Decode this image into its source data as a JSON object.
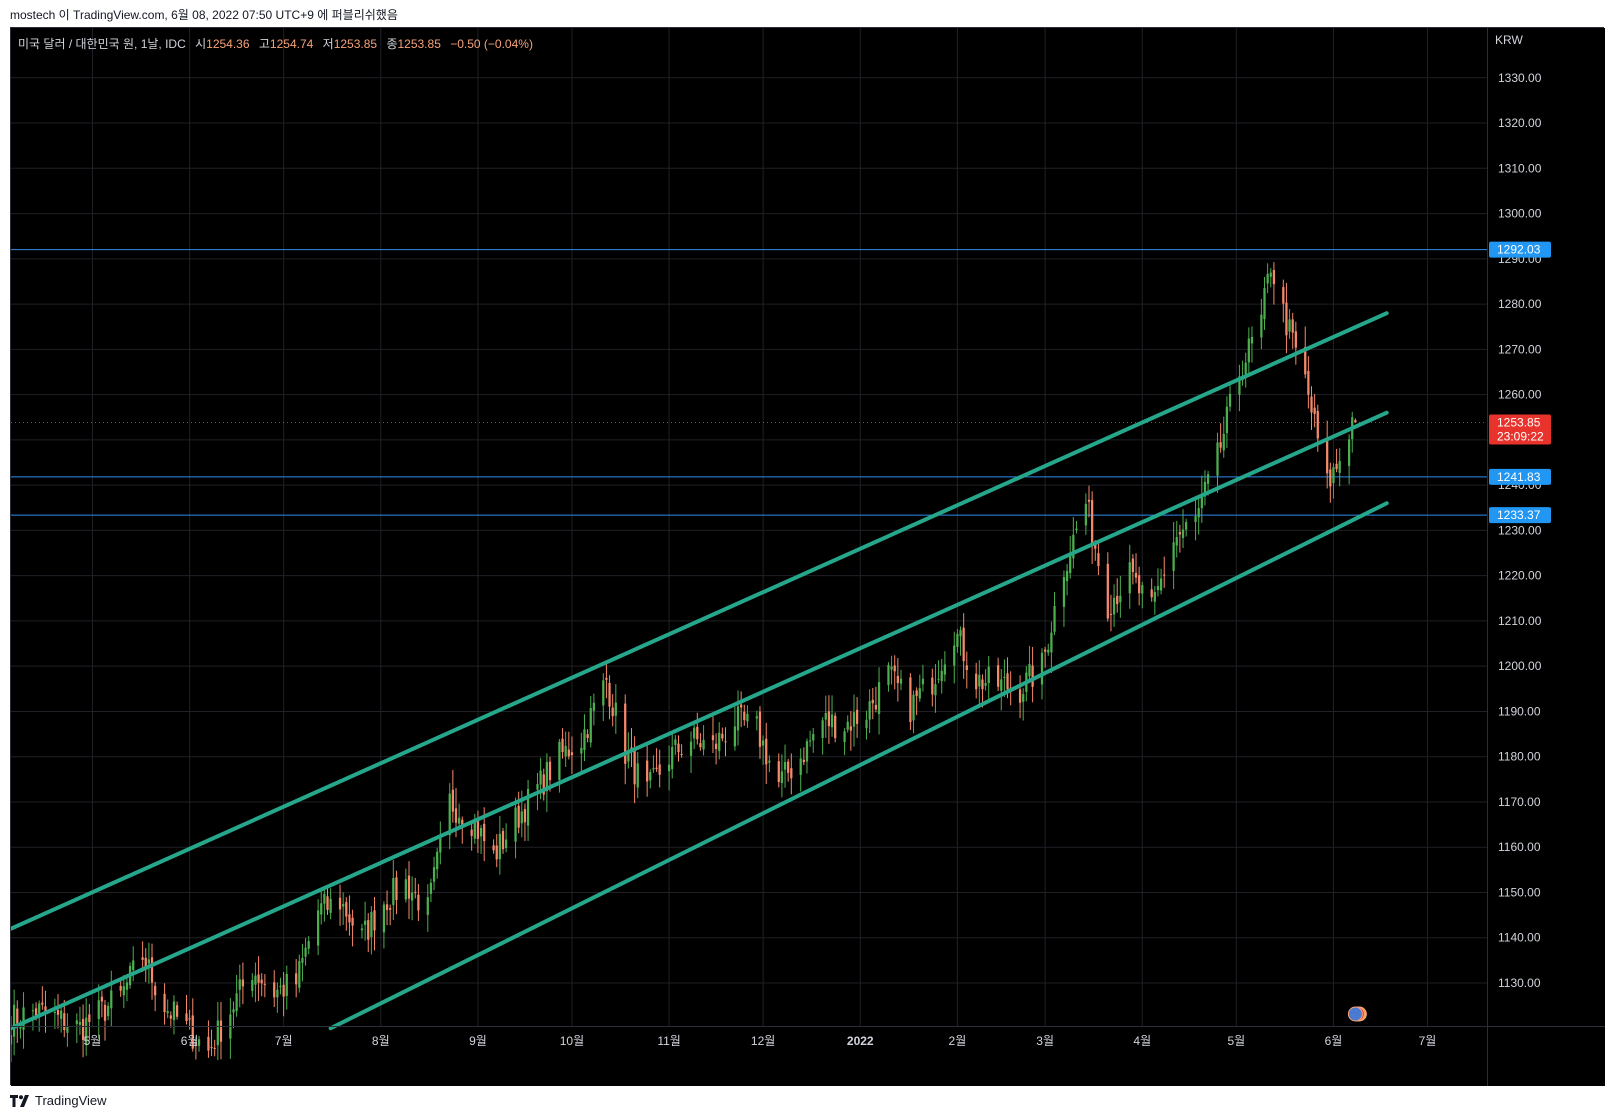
{
  "header": {
    "text": "mostech 이 TradingView.com, 6월 08, 2022 07:50 UTC+9 에 퍼블리쉬했음"
  },
  "legend": {
    "symbol": "미국 달러 / 대한민국 원, 1날, IDC",
    "open_label": "시",
    "open_value": "1254.36",
    "high_label": "고",
    "high_value": "1254.74",
    "low_label": "저",
    "low_value": "1253.85",
    "close_label": "종",
    "close_value": "1253.85",
    "change": "−0.50 (−0.04%)"
  },
  "footer": {
    "brand": "TradingView"
  },
  "colors": {
    "background": "#000000",
    "grid": "#1f2126",
    "up_candle": "#4caf50",
    "down_candle": "#f7896b",
    "channel": "#26a68a",
    "horizontal_line": "#2e8cf0",
    "price_label_blue": "#2196f3",
    "price_label_red": "#e8332c",
    "text": "#d1d4dc"
  },
  "chart_data": {
    "type": "candlestick",
    "symbol": "USD/KRW",
    "timeframe": "1D",
    "y_unit": "KRW",
    "yticks": [
      1130,
      1140,
      1150,
      1160,
      1170,
      1180,
      1190,
      1200,
      1210,
      1220,
      1230,
      1240,
      1250,
      1260,
      1270,
      1280,
      1290,
      1300,
      1310,
      1320,
      1330
    ],
    "ytick_labels": [
      "1130.00",
      "1140.00",
      "1150.00",
      "1160.00",
      "1170.00",
      "1180.00",
      "1190.00",
      "1200.00",
      "1210.00",
      "1220.00",
      "1230.00",
      "1240.00",
      "1250.00",
      "1260.00",
      "1270.00",
      "1280.00",
      "1290.00",
      "1300.00",
      "1310.00",
      "1320.00",
      "1330.00"
    ],
    "ylim": [
      1120.5,
      1341
    ],
    "xlim": [
      "2021-04-05",
      "2022-07-20"
    ],
    "xticks": [
      {
        "date": "2021-05-01",
        "label": "5월",
        "bold": false
      },
      {
        "date": "2021-06-01",
        "label": "6월",
        "bold": false
      },
      {
        "date": "2021-07-01",
        "label": "7월",
        "bold": false
      },
      {
        "date": "2021-08-01",
        "label": "8월",
        "bold": false
      },
      {
        "date": "2021-09-01",
        "label": "9월",
        "bold": false
      },
      {
        "date": "2021-10-01",
        "label": "10월",
        "bold": false
      },
      {
        "date": "2021-11-01",
        "label": "11월",
        "bold": false
      },
      {
        "date": "2021-12-01",
        "label": "12월",
        "bold": false
      },
      {
        "date": "2022-01-01",
        "label": "2022",
        "bold": true
      },
      {
        "date": "2022-02-01",
        "label": "2월",
        "bold": false
      },
      {
        "date": "2022-03-01",
        "label": "3월",
        "bold": false
      },
      {
        "date": "2022-04-01",
        "label": "4월",
        "bold": false
      },
      {
        "date": "2022-05-01",
        "label": "5월",
        "bold": false
      },
      {
        "date": "2022-06-01",
        "label": "6월",
        "bold": false
      },
      {
        "date": "2022-07-01",
        "label": "7월",
        "bold": false
      }
    ],
    "anchors": [
      [
        "2021-04-05",
        1122
      ],
      [
        "2021-04-13",
        1124
      ],
      [
        "2021-04-27",
        1120
      ],
      [
        "2021-05-10",
        1127
      ],
      [
        "2021-05-17",
        1136
      ],
      [
        "2021-05-24",
        1125
      ],
      [
        "2021-06-07",
        1115
      ],
      [
        "2021-06-21",
        1133
      ],
      [
        "2021-06-28",
        1128
      ],
      [
        "2021-07-05",
        1130
      ],
      [
        "2021-07-12",
        1146
      ],
      [
        "2021-07-19",
        1148
      ],
      [
        "2021-07-26",
        1140
      ],
      [
        "2021-08-02",
        1148
      ],
      [
        "2021-08-09",
        1152
      ],
      [
        "2021-08-16",
        1146
      ],
      [
        "2021-08-23",
        1170
      ],
      [
        "2021-08-30",
        1166
      ],
      [
        "2021-09-06",
        1158
      ],
      [
        "2021-09-13",
        1166
      ],
      [
        "2021-09-27",
        1180
      ],
      [
        "2021-10-04",
        1184
      ],
      [
        "2021-10-12",
        1197
      ],
      [
        "2021-10-18",
        1181
      ],
      [
        "2021-10-25",
        1172
      ],
      [
        "2021-11-01",
        1180
      ],
      [
        "2021-11-08",
        1184
      ],
      [
        "2021-11-15",
        1182
      ],
      [
        "2021-11-22",
        1188
      ],
      [
        "2021-11-29",
        1186
      ],
      [
        "2021-12-06",
        1174
      ],
      [
        "2021-12-13",
        1180
      ],
      [
        "2021-12-20",
        1188
      ],
      [
        "2021-12-27",
        1187
      ],
      [
        "2022-01-03",
        1190
      ],
      [
        "2022-01-10",
        1198
      ],
      [
        "2022-01-17",
        1191
      ],
      [
        "2022-01-24",
        1197
      ],
      [
        "2022-01-31",
        1208
      ],
      [
        "2022-02-07",
        1197
      ],
      [
        "2022-02-14",
        1196
      ],
      [
        "2022-02-21",
        1195
      ],
      [
        "2022-02-28",
        1200
      ],
      [
        "2022-03-07",
        1222
      ],
      [
        "2022-03-14",
        1236
      ],
      [
        "2022-03-21",
        1214
      ],
      [
        "2022-03-28",
        1220
      ],
      [
        "2022-04-04",
        1212
      ],
      [
        "2022-04-11",
        1228
      ],
      [
        "2022-04-18",
        1232
      ],
      [
        "2022-04-25",
        1246
      ],
      [
        "2022-05-02",
        1265
      ],
      [
        "2022-05-09",
        1276
      ],
      [
        "2022-05-12",
        1289
      ],
      [
        "2022-05-16",
        1278
      ],
      [
        "2022-05-23",
        1263
      ],
      [
        "2022-05-30",
        1240
      ],
      [
        "2022-06-02",
        1244
      ],
      [
        "2022-06-07",
        1254.36
      ]
    ],
    "last_candle": {
      "date": "2022-06-08",
      "open": 1254.36,
      "high": 1254.74,
      "low": 1253.85,
      "close": 1253.85
    },
    "horizontal_levels": [
      {
        "value": 1292.03,
        "label": "1292.03",
        "color": "#2196f3"
      },
      {
        "value": 1241.83,
        "label": "1241.83",
        "color": "#2196f3"
      },
      {
        "value": 1233.37,
        "label": "1233.37",
        "color": "#2196f3"
      }
    ],
    "current_price": {
      "value": 1253.85,
      "label": "1253.85",
      "countdown": "23:09:22",
      "color": "#e8332c"
    },
    "channel_lines": [
      {
        "name": "upper",
        "start": [
          "2021-04-05",
          1142
        ],
        "end": [
          "2022-06-18",
          1278
        ]
      },
      {
        "name": "middle",
        "start": [
          "2021-04-05",
          1120
        ],
        "end": [
          "2022-06-18",
          1256
        ]
      },
      {
        "name": "lower",
        "start": [
          "2021-07-16",
          1120
        ],
        "end": [
          "2022-06-18",
          1236
        ]
      }
    ],
    "grid": true,
    "legend_position": "top-left"
  }
}
